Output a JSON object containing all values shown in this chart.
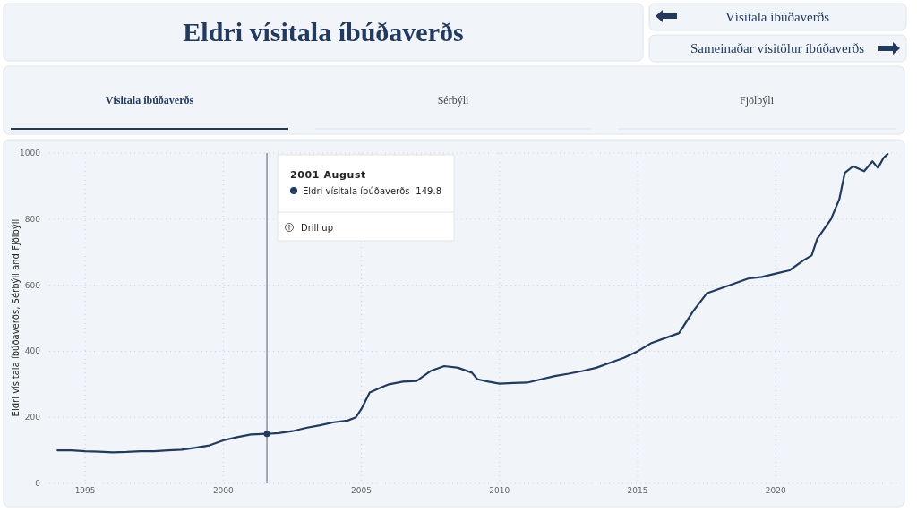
{
  "chart_data": {
    "type": "line",
    "title": "Eldri vísitala íbúðaverðs",
    "ylabel": "Eldri vísitala íbúðaverðs, Sérbýli and Fjölbýli",
    "annotations": [
      "Vísitala íbúðaverðs",
      "Sameinaðar vísitölur íbúðaverðs",
      "Vísitala íbúðaverðs",
      "Sérbýli",
      "Fjölbýli",
      "2001 August",
      "149.8",
      "Drill up"
    ],
    "x": [
      1994.0,
      1994.5,
      1995,
      1995.5,
      1996,
      1996.5,
      1997,
      1997.5,
      1998,
      1998.5,
      1999,
      1999.5,
      2000,
      2000.5,
      2001,
      2001.58,
      2002,
      2002.5,
      2003,
      2003.5,
      2004,
      2004.5,
      2004.8,
      2005,
      2005.3,
      2005.7,
      2006,
      2006.5,
      2007,
      2007.5,
      2008,
      2008.5,
      2009,
      2009.2,
      2009.6,
      2010,
      2010.5,
      2011,
      2011.5,
      2012,
      2012.5,
      2013,
      2013.5,
      2014,
      2014.5,
      2015,
      2015.5,
      2016,
      2016.5,
      2017,
      2017.5,
      2018,
      2018.5,
      2019,
      2019.5,
      2020,
      2020.5,
      2021,
      2021.3,
      2021.5,
      2022,
      2022.3,
      2022.5,
      2022.8,
      2023.2,
      2023.5,
      2023.7,
      2023.9,
      2024.05
    ],
    "series": [
      {
        "name": "Eldri vísitala íbúðaverðs",
        "color": "#223a5e",
        "values": [
          100,
          100,
          97,
          96,
          94,
          95,
          97,
          97,
          100,
          102,
          108,
          115,
          130,
          140,
          148,
          149.8,
          152,
          158,
          168,
          176,
          185,
          190,
          200,
          225,
          275,
          290,
          300,
          308,
          310,
          340,
          355,
          350,
          335,
          315,
          308,
          302,
          304,
          305,
          315,
          325,
          332,
          340,
          350,
          365,
          380,
          400,
          425,
          440,
          455,
          520,
          575,
          590,
          605,
          620,
          625,
          635,
          645,
          675,
          690,
          740,
          800,
          860,
          940,
          960,
          945,
          975,
          955,
          985,
          997
        ]
      }
    ],
    "xlim": [
      1993.7,
      2024.4
    ],
    "xticks": [
      1995,
      2000,
      2005,
      2010,
      2015,
      2020
    ],
    "ylim": [
      0,
      1000
    ],
    "yticks": [
      0,
      200,
      400,
      600,
      800,
      1000
    ],
    "grid": true,
    "marker": "none",
    "line_style": "solid",
    "ref_lines": [
      {
        "axis": "x",
        "value": 2001.58,
        "color": "#8a8f96"
      }
    ]
  }
}
